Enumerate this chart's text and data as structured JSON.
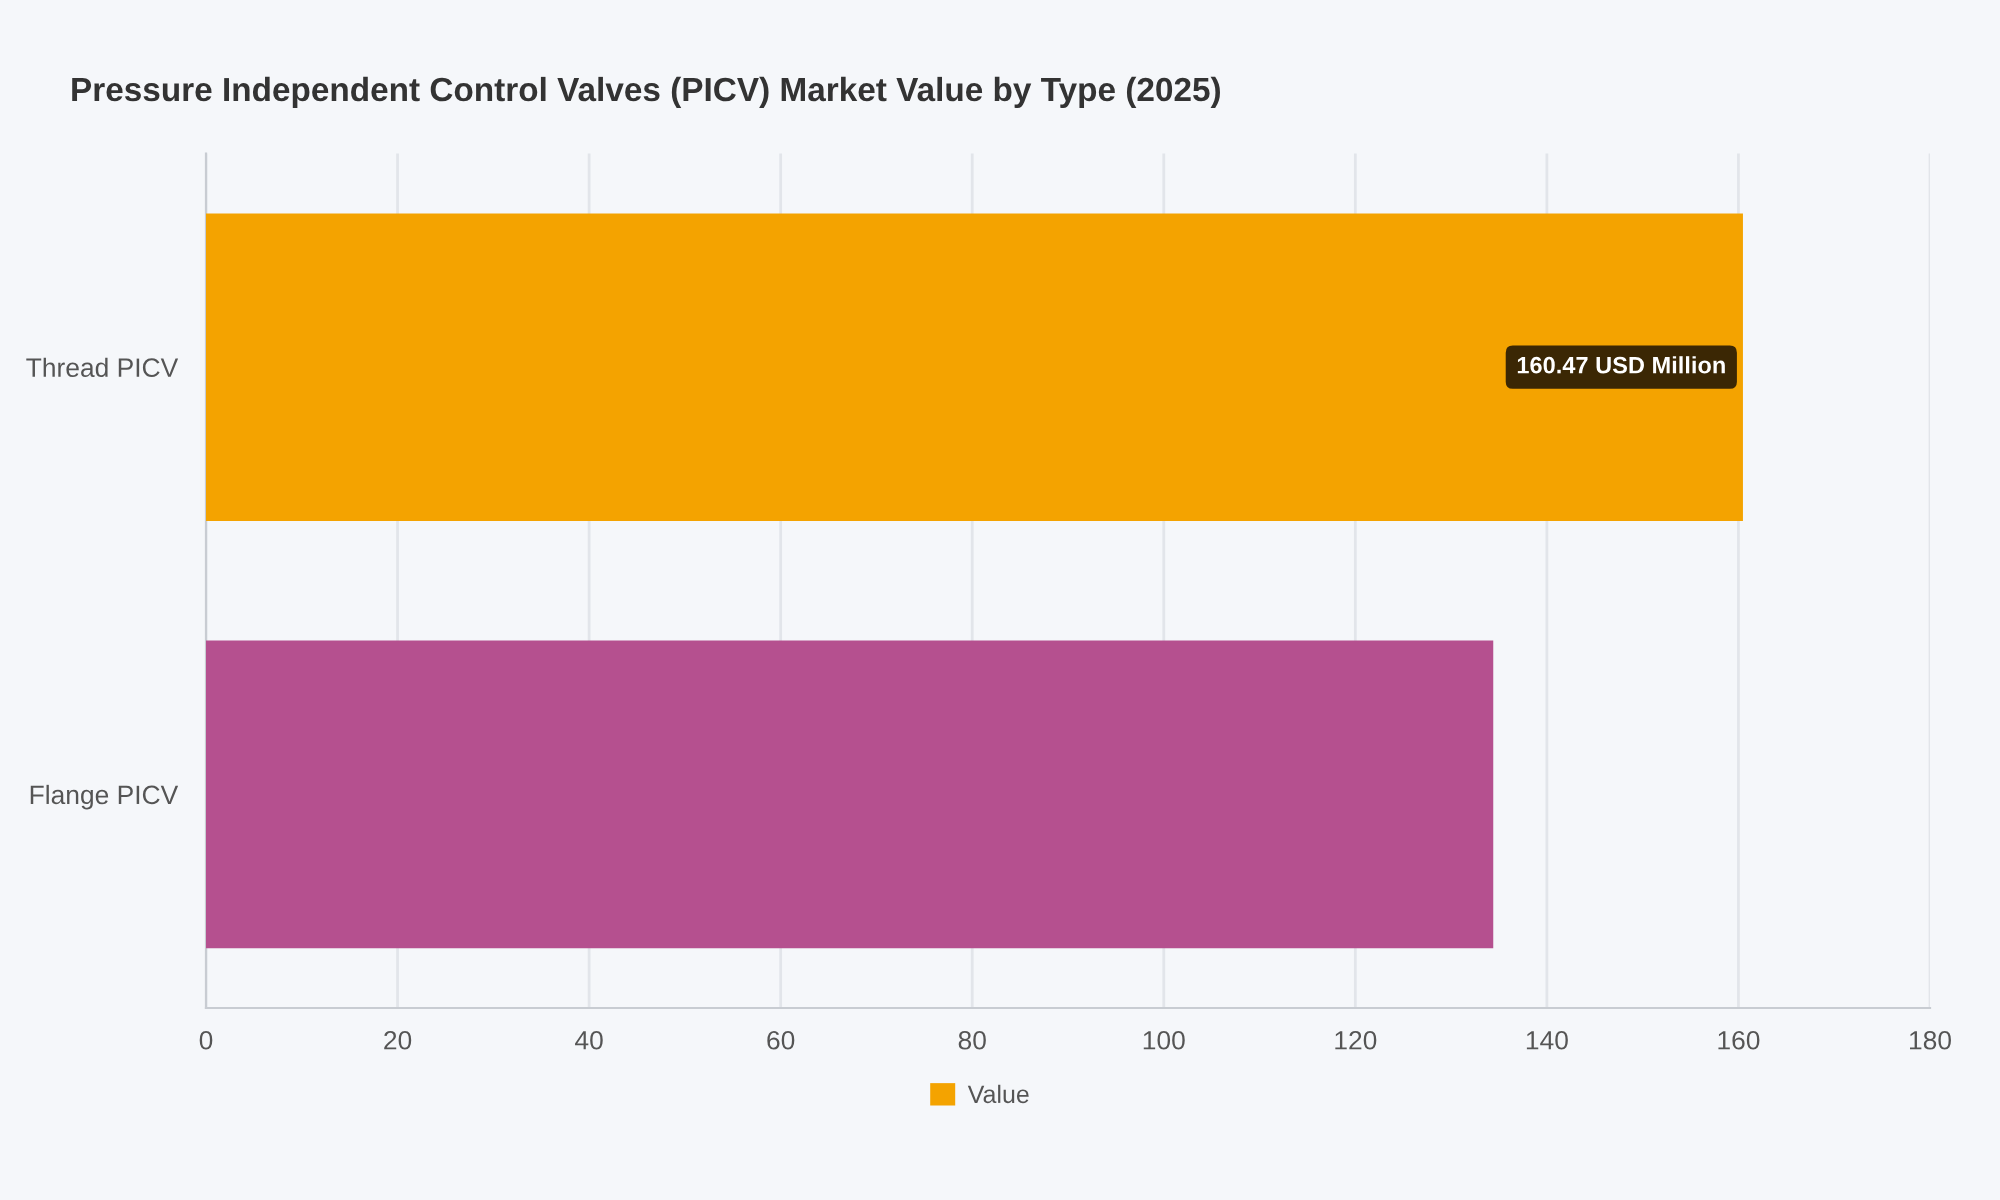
{
  "chart_data": {
    "type": "bar",
    "orientation": "horizontal",
    "title": "Pressure Independent Control Valves (PICV) Market Value by Type (2025)",
    "categories": [
      "Thread PICV",
      "Flange PICV"
    ],
    "series": [
      {
        "name": "Value",
        "color": "#f4a300",
        "colors": [
          "#f4a300",
          "#b5508f"
        ],
        "values": [
          160.47,
          134.4
        ],
        "value_labels": [
          "160.47 USD Million",
          null
        ]
      }
    ],
    "xlim": [
      0,
      180
    ],
    "xticks": [
      0,
      20,
      40,
      60,
      80,
      100,
      120,
      140,
      160,
      180
    ],
    "grid": "x",
    "legend": "bottom"
  }
}
